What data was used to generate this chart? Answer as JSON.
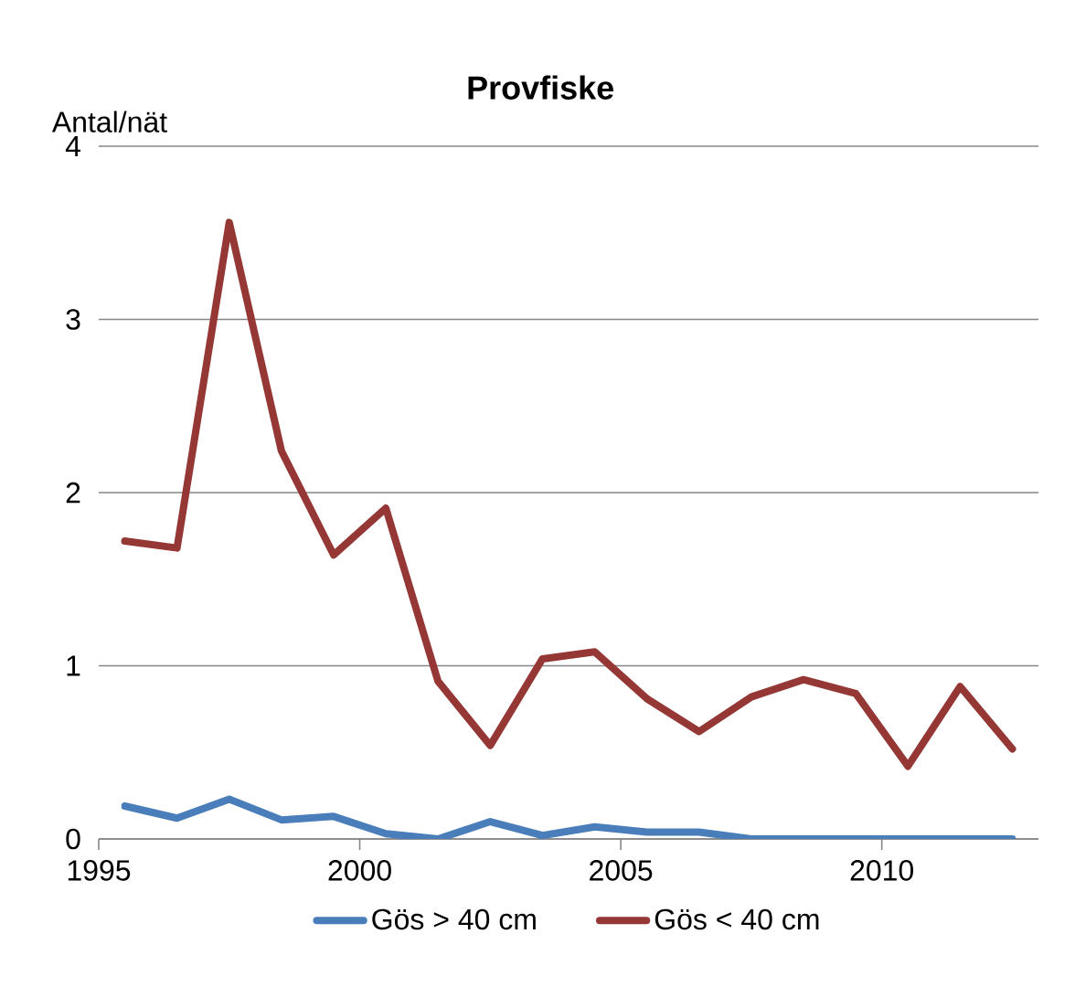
{
  "chart_data": {
    "type": "line",
    "title": "Provfiske",
    "ylabel": "Antal/nät",
    "x": [
      1995.5,
      1996.5,
      1997.5,
      1998.5,
      1999.5,
      2000.5,
      2001.5,
      2002.5,
      2003.5,
      2004.5,
      2005.5,
      2006.5,
      2007.5,
      2008.5,
      2009.5,
      2010.5,
      2011.5,
      2012.5
    ],
    "series": [
      {
        "name": "Gös > 40 cm",
        "color": "#4a7ebb",
        "values": [
          0.19,
          0.12,
          0.23,
          0.11,
          0.13,
          0.03,
          0.0,
          0.1,
          0.02,
          0.07,
          0.04,
          0.04,
          0.0,
          0.0,
          0.0,
          0.0,
          0.0,
          0.0
        ]
      },
      {
        "name": "Gös < 40 cm",
        "color": "#953735",
        "values": [
          1.72,
          1.68,
          3.56,
          2.24,
          1.64,
          1.91,
          0.91,
          0.54,
          1.04,
          1.08,
          0.81,
          0.62,
          0.82,
          0.92,
          0.84,
          0.42,
          0.88,
          0.52
        ]
      }
    ],
    "xlim": [
      1995,
      2013
    ],
    "xticks": [
      1995,
      2000,
      2005,
      2010
    ],
    "ylim": [
      0,
      4
    ],
    "yticks": [
      0,
      1,
      2,
      3,
      4
    ],
    "grid": "y",
    "legend": "bottom",
    "marker": "none",
    "line_style": "solid"
  }
}
